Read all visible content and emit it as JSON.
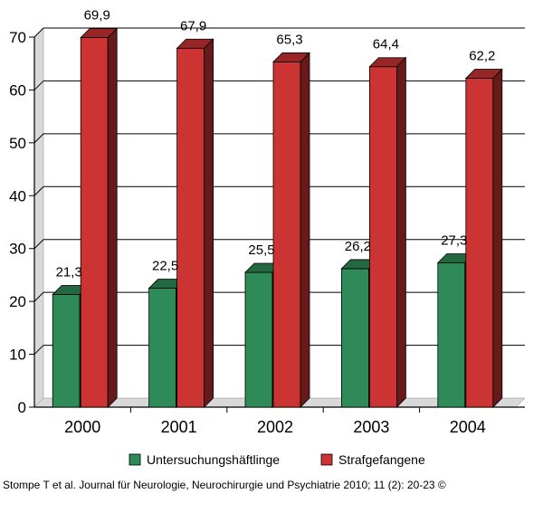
{
  "chart_data": {
    "type": "bar",
    "categories": [
      "2000",
      "2001",
      "2002",
      "2003",
      "2004"
    ],
    "series": [
      {
        "name": "Untersuchungshäftlinge",
        "values": [
          21.3,
          22.5,
          25.5,
          26.2,
          27.3
        ],
        "labels": [
          "21,3",
          "22,5",
          "25,5",
          "26,2",
          "27,3"
        ],
        "color": "#2e8b57"
      },
      {
        "name": "Strafgefangene",
        "values": [
          69.9,
          67.9,
          65.3,
          64.4,
          62.2
        ],
        "labels": [
          "69,9",
          "67,9",
          "65,3",
          "64,4",
          "62,2"
        ],
        "color": "#cc3333"
      }
    ],
    "yticks": [
      "0",
      "10",
      "20",
      "30",
      "40",
      "50",
      "60",
      "70"
    ],
    "ylim": [
      0,
      70
    ],
    "grid": true,
    "legend": "bottom",
    "style": "3d-bar"
  },
  "source": "Stompe T et al. Journal für Neurologie, Neurochirurgie und Psychiatrie 2010; 11 (2): 20-23 ©"
}
